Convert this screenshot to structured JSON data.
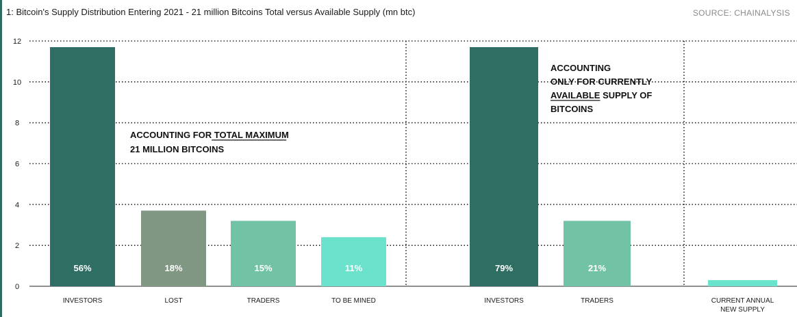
{
  "title": "1: Bitcoin's Supply Distribution Entering 2021 - 21 million Bitcoins Total versus Available Supply (mn btc)",
  "source": "SOURCE: CHAINALYSIS",
  "colors": {
    "dark_green": "#2f6f63",
    "gray_green": "#7f9783",
    "mid_green": "#72c3a5",
    "light_teal": "#6be3cc",
    "grid": "#222222"
  },
  "chart_data": {
    "type": "bar",
    "ylim": [
      0,
      12
    ],
    "yticks": [
      0,
      2,
      4,
      6,
      8,
      10,
      12
    ],
    "grid": true,
    "panels": [
      {
        "annotation": [
          "ACCOUNTING FOR TOTAL MAXIMUM",
          "21 MILLION BITCOINS"
        ],
        "categories": [
          "INVESTORS",
          "LOST",
          "TRADERS",
          "TO BE MINED"
        ],
        "values": [
          11.7,
          3.7,
          3.2,
          2.4
        ],
        "labels": [
          "56%",
          "18%",
          "15%",
          "11%"
        ],
        "colors": [
          "#2f6f63",
          "#7f9783",
          "#72c3a5",
          "#6be3cc"
        ]
      },
      {
        "annotation": [
          "ACCOUNTING",
          "ONLY FOR CURRENTLY",
          "AVAILABLE SUPPLY OF",
          "BITCOINS"
        ],
        "categories": [
          "INVESTORS",
          "TRADERS",
          "CURRENT ANNUAL\nNEW SUPPLY"
        ],
        "values": [
          11.7,
          3.2,
          0.3
        ],
        "labels": [
          "79%",
          "21%",
          ""
        ],
        "colors": [
          "#2f6f63",
          "#72c3a5",
          "#6be3cc"
        ]
      }
    ]
  }
}
